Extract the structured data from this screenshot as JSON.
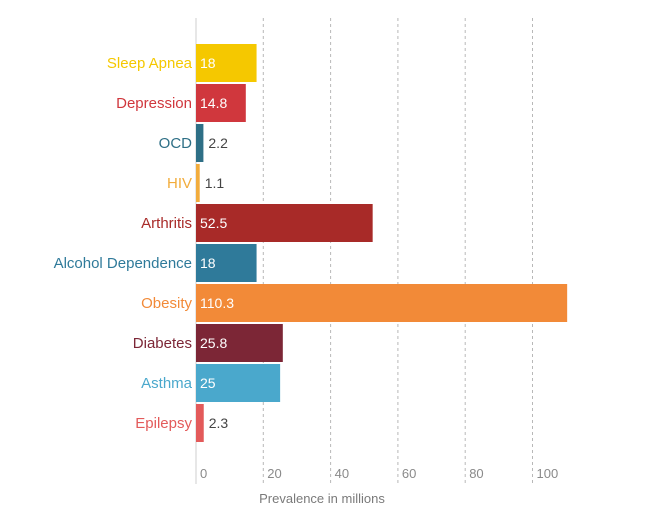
{
  "chart_data": {
    "type": "bar",
    "orientation": "horizontal",
    "title": "",
    "xlabel": "Prevalence in millions",
    "ylabel": "",
    "xlim": [
      0,
      110
    ],
    "xticks": [
      0,
      20,
      40,
      60,
      80,
      100
    ],
    "grid": true,
    "categories": [
      "Sleep Apnea",
      "Depression",
      "OCD",
      "HIV",
      "Arthritis",
      "Alcohol Dependence",
      "Obesity",
      "Diabetes",
      "Asthma",
      "Epilepsy"
    ],
    "values": [
      18,
      14.8,
      2.2,
      1.1,
      52.5,
      18,
      110.3,
      25.8,
      25,
      2.3
    ],
    "value_labels": [
      "18",
      "14.8",
      "2.2",
      "1.1",
      "52.5",
      "18",
      "110.3",
      "25.8",
      "25",
      "2.3"
    ],
    "colors": [
      "#f5c800",
      "#d0373d",
      "#2e6f86",
      "#f2ac3c",
      "#a82a28",
      "#2f7a9a",
      "#f28a38",
      "#7c2636",
      "#4aa8cc",
      "#e35a5a"
    ]
  }
}
